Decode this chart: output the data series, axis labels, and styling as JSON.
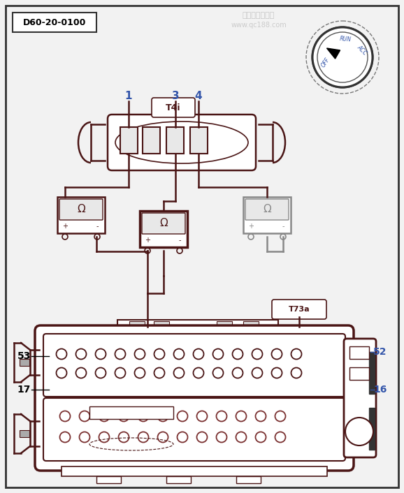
{
  "bg_color": "#f2f2f2",
  "border_color": "#222222",
  "dark_brown": "#4a1515",
  "medium_brown": "#7a3030",
  "light_gray": "#888888",
  "blue_label": "#3355aa",
  "label_box": "D60-20-0100",
  "connector_label": "T4i",
  "connector2_label": "T73a",
  "pin_labels": [
    "1",
    "3",
    "4"
  ],
  "side_labels_left": [
    "53",
    "17"
  ],
  "side_labels_right": [
    "52",
    "16"
  ],
  "watermark_text": "汽车维修技术网",
  "watermark_sub": "www.qc188.com"
}
